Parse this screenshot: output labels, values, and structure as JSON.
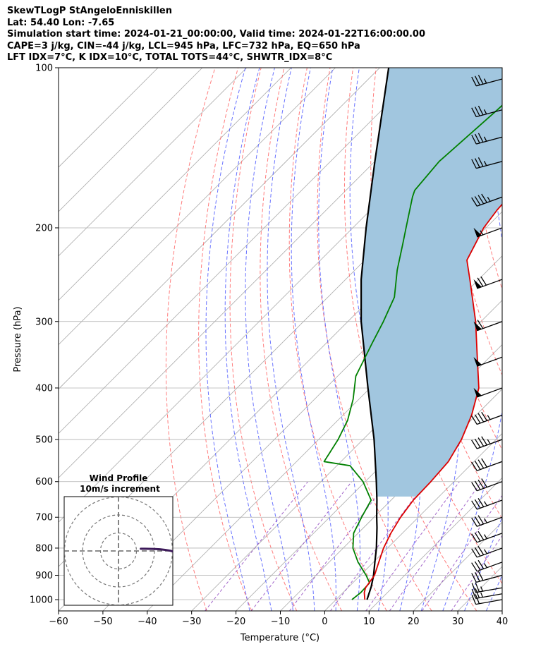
{
  "header": {
    "line1": "SkewTLogP StAngeloEnniskillen",
    "line2": "Lat: 54.40   Lon: -7.65",
    "line3": "Simulation start time: 2024-01-21_00:00:00, Valid time: 2024-01-22T16:00:00.00",
    "line4": "CAPE=3 j/kg, CIN=-44 j/kg, LCL=945 hPa, LFC=732 hPa, EQ=650 hPa",
    "line5": "LFT IDX=7°C, K IDX=10°C, TOTAL TOTS=44°C, SHWTR_IDX=8°C"
  },
  "colors": {
    "temperature": "#dd0000",
    "dewpoint": "#008000",
    "parcel": "#000000",
    "cape_fill": "#a1c6df",
    "dry_adiabat": "#ff6666",
    "moist_adiabat": "#4f5bff",
    "mixing_ratio": "#8b3fbd",
    "isotherm": "#aaaaaa",
    "hodograph": "#3d1a5a"
  },
  "chart_data": {
    "type": "skew-t log-p",
    "xlabel": "Temperature (°C)",
    "ylabel": "Pressure (hPa)",
    "xlim": [
      -60,
      40
    ],
    "ylim": [
      1050,
      100
    ],
    "x_ticks": [
      "−60",
      "−50",
      "−40",
      "−30",
      "−20",
      "−10",
      "0",
      "10",
      "20",
      "30",
      "40"
    ],
    "y_ticks": [
      "100",
      "200",
      "300",
      "400",
      "500",
      "600",
      "700",
      "800",
      "900",
      "1000"
    ],
    "grid": true,
    "temperature_profile": [
      [
        1000,
        6.5
      ],
      [
        970,
        4.8
      ],
      [
        950,
        4.0
      ],
      [
        900,
        3.2
      ],
      [
        850,
        1.2
      ],
      [
        800,
        -0.9
      ],
      [
        750,
        -2.6
      ],
      [
        700,
        -4.0
      ],
      [
        650,
        -5.0
      ],
      [
        600,
        -5.2
      ],
      [
        550,
        -5.8
      ],
      [
        500,
        -7.8
      ],
      [
        450,
        -11.0
      ],
      [
        400,
        -15.5
      ],
      [
        350,
        -22.8
      ],
      [
        300,
        -31.2
      ],
      [
        250,
        -42.0
      ],
      [
        230,
        -47.0
      ],
      [
        200,
        -50.5
      ],
      [
        185,
        -51.5
      ],
      [
        170,
        -52.0
      ],
      [
        150,
        -54.2
      ],
      [
        130,
        -56.5
      ],
      [
        115,
        -57.8
      ],
      [
        100,
        -58.4
      ]
    ],
    "dewpoint_profile": [
      [
        1000,
        3.6
      ],
      [
        970,
        4.0
      ],
      [
        930,
        3.8
      ],
      [
        900,
        1.3
      ],
      [
        850,
        -3.5
      ],
      [
        800,
        -7.8
      ],
      [
        750,
        -11.0
      ],
      [
        700,
        -12.8
      ],
      [
        650,
        -14.5
      ],
      [
        600,
        -20.5
      ],
      [
        560,
        -27.0
      ],
      [
        550,
        -33.8
      ],
      [
        530,
        -34.5
      ],
      [
        500,
        -35.6
      ],
      [
        460,
        -37.8
      ],
      [
        420,
        -41.3
      ],
      [
        380,
        -45.9
      ],
      [
        330,
        -49.6
      ],
      [
        300,
        -52.0
      ],
      [
        270,
        -55.0
      ],
      [
        240,
        -60.5
      ],
      [
        215,
        -65.0
      ],
      [
        200,
        -68.0
      ],
      [
        175,
        -73.5
      ],
      [
        170,
        -74.5
      ],
      [
        150,
        -75.5
      ],
      [
        120,
        -74.0
      ],
      [
        100,
        -73.3
      ]
    ],
    "parcel_profile": [
      [
        1000,
        7.0
      ],
      [
        945,
        5.0
      ],
      [
        900,
        3.0
      ],
      [
        850,
        0.3
      ],
      [
        800,
        -2.5
      ],
      [
        732,
        -7.0
      ],
      [
        700,
        -9.4
      ],
      [
        650,
        -13.2
      ],
      [
        600,
        -17.5
      ],
      [
        500,
        -27.5
      ],
      [
        400,
        -40.5
      ],
      [
        300,
        -57.0
      ],
      [
        250,
        -66.5
      ],
      [
        200,
        -77.0
      ],
      [
        150,
        -90.0
      ],
      [
        100,
        -108.0
      ]
    ],
    "wind_barbs": [
      {
        "p": 1000,
        "speed_kt": 20,
        "dir_deg": 260
      },
      {
        "p": 975,
        "speed_kt": 25,
        "dir_deg": 260
      },
      {
        "p": 950,
        "speed_kt": 25,
        "dir_deg": 260
      },
      {
        "p": 900,
        "speed_kt": 30,
        "dir_deg": 255
      },
      {
        "p": 850,
        "speed_kt": 35,
        "dir_deg": 250
      },
      {
        "p": 800,
        "speed_kt": 35,
        "dir_deg": 250
      },
      {
        "p": 750,
        "speed_kt": 35,
        "dir_deg": 250
      },
      {
        "p": 700,
        "speed_kt": 35,
        "dir_deg": 250
      },
      {
        "p": 650,
        "speed_kt": 35,
        "dir_deg": 250
      },
      {
        "p": 600,
        "speed_kt": 40,
        "dir_deg": 250
      },
      {
        "p": 550,
        "speed_kt": 40,
        "dir_deg": 250
      },
      {
        "p": 500,
        "speed_kt": 45,
        "dir_deg": 250
      },
      {
        "p": 450,
        "speed_kt": 45,
        "dir_deg": 250
      },
      {
        "p": 400,
        "speed_kt": 50,
        "dir_deg": 250
      },
      {
        "p": 350,
        "speed_kt": 50,
        "dir_deg": 250
      },
      {
        "p": 300,
        "speed_kt": 60,
        "dir_deg": 250
      },
      {
        "p": 250,
        "speed_kt": 70,
        "dir_deg": 250
      },
      {
        "p": 200,
        "speed_kt": 55,
        "dir_deg": 250
      },
      {
        "p": 175,
        "speed_kt": 45,
        "dir_deg": 250
      },
      {
        "p": 150,
        "speed_kt": 35,
        "dir_deg": 255
      },
      {
        "p": 135,
        "speed_kt": 35,
        "dir_deg": 255
      },
      {
        "p": 120,
        "speed_kt": 35,
        "dir_deg": 255
      },
      {
        "p": 105,
        "speed_kt": 35,
        "dir_deg": 255
      }
    ],
    "hodograph": {
      "title": "Wind Profile",
      "subtitle": "10m/s increment",
      "ring_spacing_ms": 10,
      "points_uv": [
        [
          11.0,
          -10.0
        ],
        [
          11.5,
          -8.0
        ],
        [
          11.8,
          -6.0
        ],
        [
          11.5,
          -4.0
        ],
        [
          10.7,
          -2.5
        ],
        [
          9.8,
          -1.6
        ],
        [
          8.8,
          -1.1
        ],
        [
          7.8,
          -0.7
        ],
        [
          6.5,
          -0.5
        ],
        [
          5.0,
          -0.4
        ],
        [
          4.2,
          -0.4
        ]
      ]
    }
  }
}
